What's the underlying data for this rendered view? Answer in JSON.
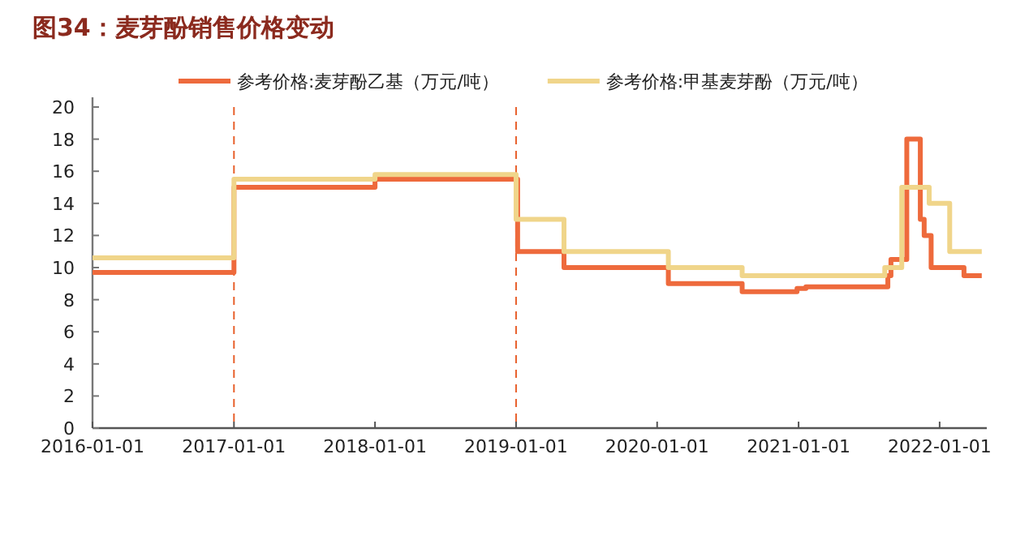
{
  "chart_data": {
    "type": "step",
    "title": "图34：麦芽酚销售价格变动",
    "xlim": [
      "2016-01-01",
      "2022-05-03"
    ],
    "xticks": [
      "2016-01-01",
      "2017-01-01",
      "2018-01-01",
      "2019-01-01",
      "2020-01-01",
      "2021-01-01",
      "2022-01-01"
    ],
    "ylim": [
      0,
      20
    ],
    "yticks": [
      0,
      2,
      4,
      6,
      8,
      10,
      12,
      14,
      16,
      18,
      20
    ],
    "legend": "top",
    "ref_lines": [
      {
        "axis": "x",
        "value": "2017-01-01",
        "color": "#e8602c",
        "line_style": "dashed"
      },
      {
        "axis": "x",
        "value": "2019-01-01",
        "color": "#e8602c",
        "line_style": "dashed"
      }
    ],
    "series": [
      {
        "name": "参考价格:麦芽酚乙基（万元/吨）",
        "color": "#ee6a3c",
        "x": [
          "2016-01-01",
          "2017-01-01",
          "2018-01-01",
          "2019-01-05",
          "2019-05-05",
          "2020-01-30",
          "2020-08-08",
          "2020-12-28",
          "2021-01-20",
          "2021-08-20",
          "2021-08-28",
          "2021-10-08",
          "2021-11-12",
          "2021-11-22",
          "2021-12-10",
          "2022-03-05",
          "2022-04-20"
        ],
        "values": [
          9.7,
          15.0,
          15.5,
          11.0,
          10.0,
          9.0,
          8.5,
          8.7,
          8.8,
          9.5,
          10.5,
          18.0,
          13.0,
          12.0,
          10.0,
          9.5,
          9.5
        ]
      },
      {
        "name": "参考价格:甲基麦芽酚（万元/吨）",
        "color": "#f0d58a",
        "x": [
          "2016-01-01",
          "2017-01-01",
          "2018-01-01",
          "2019-01-01",
          "2019-05-05",
          "2020-01-30",
          "2020-08-08",
          "2021-08-12",
          "2021-09-25",
          "2021-12-05",
          "2022-01-27",
          "2022-04-20"
        ],
        "values": [
          10.6,
          15.5,
          15.8,
          13.0,
          11.0,
          10.0,
          9.5,
          10.0,
          15.0,
          14.0,
          11.0,
          11.0
        ]
      }
    ]
  }
}
